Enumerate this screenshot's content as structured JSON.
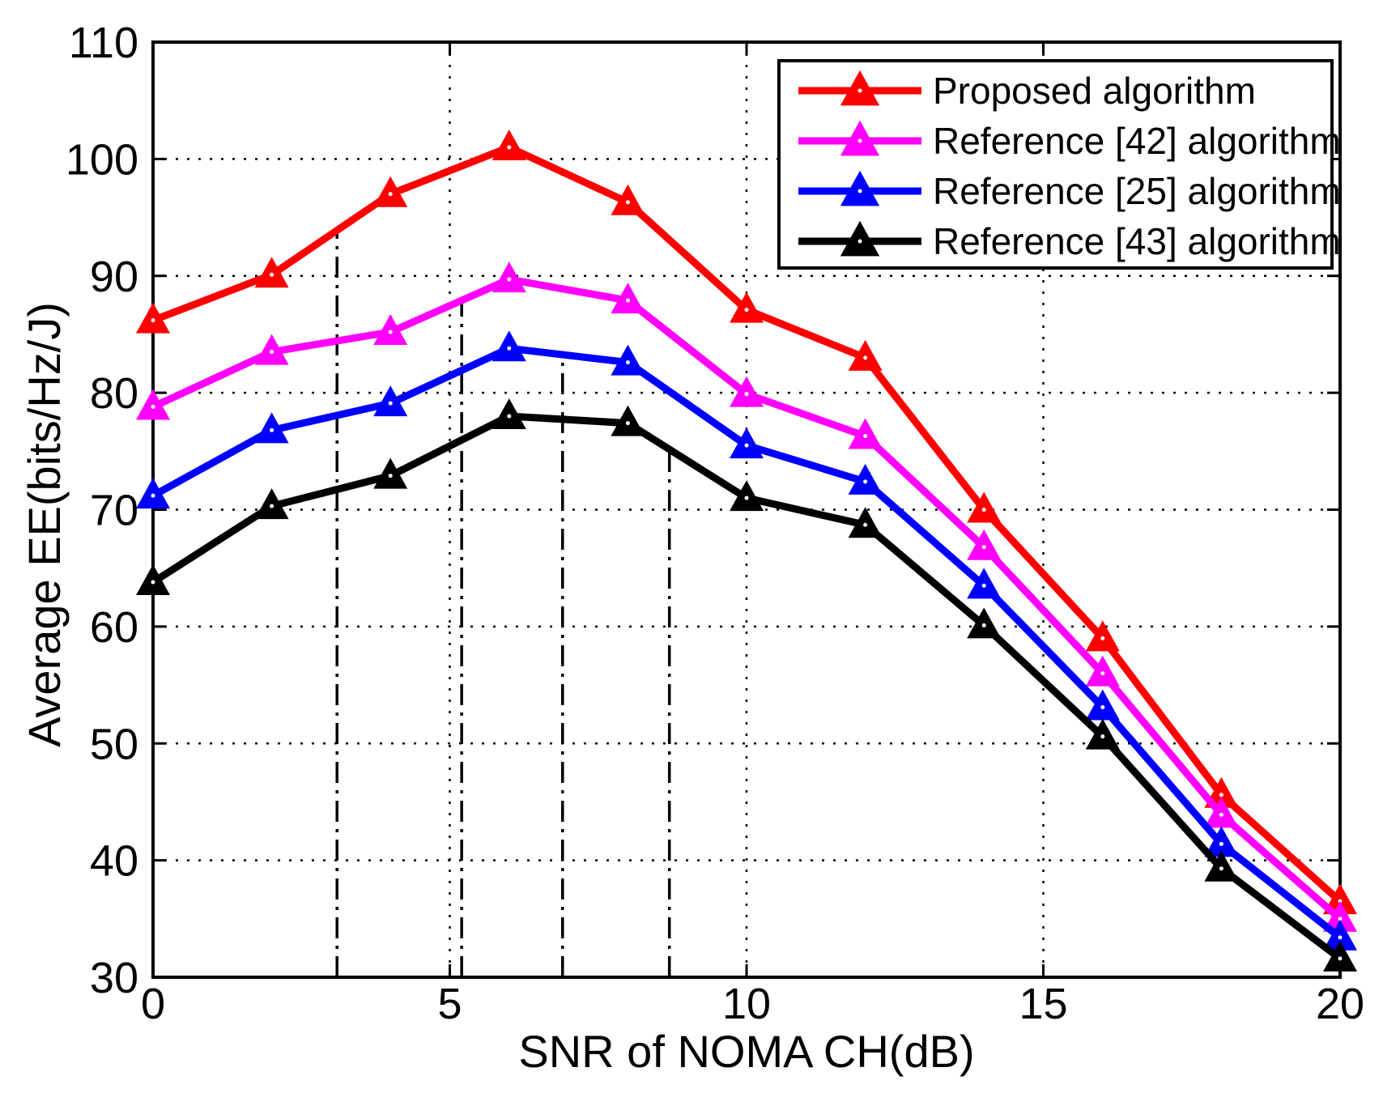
{
  "figure": {
    "background": "#ffffff",
    "axis_color": "#000000"
  },
  "chart_data": {
    "type": "line",
    "title": "",
    "xlabel": "SNR of NOMA CH(dB)",
    "ylabel": "Average EE(bits/Hz/J)",
    "xlim": [
      0,
      20
    ],
    "ylim": [
      30,
      110
    ],
    "xticks": [
      0,
      5,
      10,
      15,
      20
    ],
    "yticks": [
      30,
      40,
      50,
      60,
      70,
      80,
      90,
      100,
      110
    ],
    "grid": "on",
    "grid_style": "dotted",
    "legend_position": "top-right",
    "x": [
      0,
      2,
      4,
      6,
      8,
      10,
      12,
      14,
      16,
      18,
      20
    ],
    "series": [
      {
        "name": "Proposed algorithm",
        "color": "#ff0000",
        "marker": "triangle-up",
        "values": [
          86.2,
          90.1,
          97.0,
          101.0,
          96.3,
          87.1,
          83.0,
          70.0,
          59.0,
          45.6,
          36.5
        ]
      },
      {
        "name": "Reference [42] algorithm",
        "color": "#ff00ff",
        "marker": "triangle-up",
        "values": [
          78.8,
          83.5,
          85.2,
          89.7,
          87.9,
          79.9,
          76.3,
          66.8,
          56.0,
          43.9,
          35.0
        ]
      },
      {
        "name": "Reference [25] algorithm",
        "color": "#0000ff",
        "marker": "triangle-up",
        "values": [
          71.2,
          76.8,
          79.1,
          83.8,
          82.6,
          75.5,
          72.4,
          63.5,
          53.1,
          41.4,
          33.4
        ]
      },
      {
        "name": "Reference [43] algorithm",
        "color": "#000000",
        "marker": "triangle-up",
        "values": [
          63.8,
          70.3,
          72.9,
          78.0,
          77.4,
          71.0,
          68.7,
          60.1,
          50.6,
          39.3,
          31.6
        ]
      }
    ],
    "annotation_lines": [
      {
        "x": 3.1,
        "y_bottom": 30,
        "y_top": 93.9,
        "style": "dash-dot",
        "color": "#000000"
      },
      {
        "x": 5.2,
        "y_bottom": 30,
        "y_top": 87.9,
        "style": "dash-dot",
        "color": "#000000"
      },
      {
        "x": 6.9,
        "y_bottom": 30,
        "y_top": 83.3,
        "style": "dash-dot",
        "color": "#000000"
      },
      {
        "x": 8.7,
        "y_bottom": 30,
        "y_top": 75.2,
        "style": "dash-dot",
        "color": "#000000"
      }
    ]
  }
}
